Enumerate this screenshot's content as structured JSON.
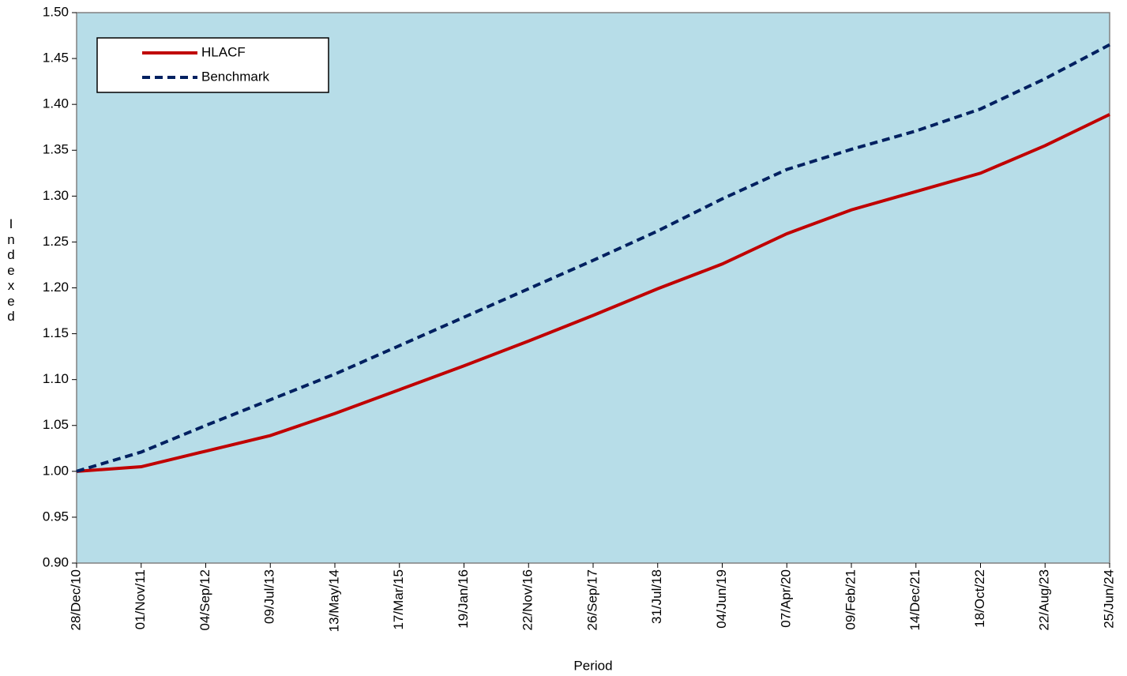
{
  "chart_data": {
    "type": "line",
    "x_label": "Period",
    "y_label": "Indexed",
    "categories": [
      "28/Dec/10",
      "01/Nov/11",
      "04/Sep/12",
      "09/Jul/13",
      "13/May/14",
      "17/Mar/15",
      "19/Jan/16",
      "22/Nov/16",
      "26/Sep/17",
      "31/Jul/18",
      "04/Jun/19",
      "07/Apr/20",
      "09/Feb/21",
      "14/Dec/21",
      "18/Oct/22",
      "22/Aug/23",
      "25/Jun/24"
    ],
    "series": [
      {
        "name": "HLACF",
        "color": "#c00000",
        "dash": false,
        "values": [
          1.0,
          1.005,
          1.022,
          1.039,
          1.063,
          1.089,
          1.115,
          1.142,
          1.17,
          1.199,
          1.226,
          1.259,
          1.285,
          1.305,
          1.325,
          1.355,
          1.389
        ]
      },
      {
        "name": "Benchmark",
        "color": "#002060",
        "dash": true,
        "values": [
          1.0,
          1.021,
          1.05,
          1.078,
          1.106,
          1.137,
          1.168,
          1.199,
          1.23,
          1.262,
          1.297,
          1.329,
          1.351,
          1.371,
          1.395,
          1.428,
          1.465
        ]
      }
    ],
    "ylim": [
      0.9,
      1.5
    ],
    "yticks": [
      {
        "value": 0.9,
        "label": "0.90"
      },
      0.95,
      {
        "value": 1.0,
        "label": "1.00"
      },
      1.05,
      {
        "value": 1.1,
        "label": "1.10"
      },
      1.15,
      {
        "value": 1.2,
        "label": "1.20"
      },
      1.25,
      {
        "value": 1.3,
        "label": "1.30"
      },
      1.35,
      {
        "value": 1.4,
        "label": "1.40"
      },
      1.45,
      {
        "value": 1.5,
        "label": "1.50"
      }
    ],
    "plot_background": "#b7dde8",
    "legend": "upper left"
  }
}
